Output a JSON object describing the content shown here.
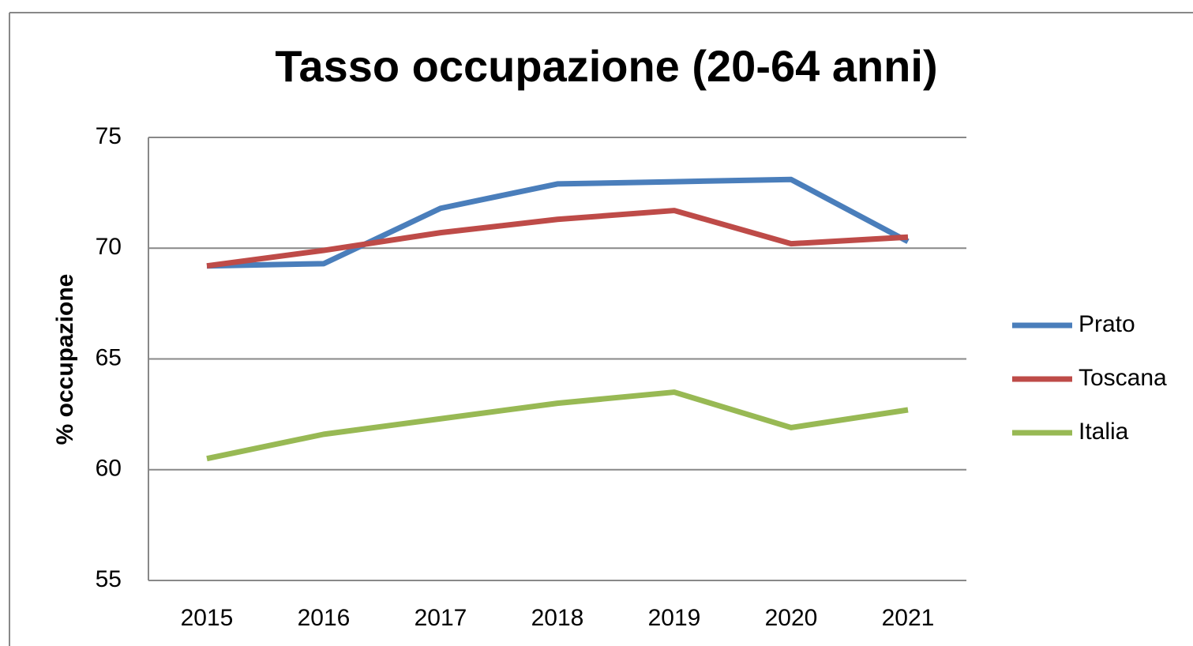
{
  "chart_data": {
    "type": "line",
    "title": "Tasso occupazione (20-64 anni)",
    "y_label": "% occupazione",
    "categories": [
      "2015",
      "2016",
      "2017",
      "2018",
      "2019",
      "2020",
      "2021"
    ],
    "series": [
      {
        "name": "Prato",
        "color": "#4a7ebb",
        "values": [
          69.2,
          69.3,
          71.8,
          72.9,
          73.0,
          73.1,
          70.3
        ]
      },
      {
        "name": "Toscana",
        "color": "#be4b48",
        "values": [
          69.2,
          69.9,
          70.7,
          71.3,
          71.7,
          70.2,
          70.5
        ]
      },
      {
        "name": "Italia",
        "color": "#98b954",
        "values": [
          60.5,
          61.6,
          62.3,
          63.0,
          63.5,
          61.9,
          62.7
        ]
      }
    ],
    "ylim": [
      55,
      75
    ],
    "yticks": [
      55,
      60,
      65,
      70,
      75
    ],
    "grid": true,
    "legend": "right"
  }
}
